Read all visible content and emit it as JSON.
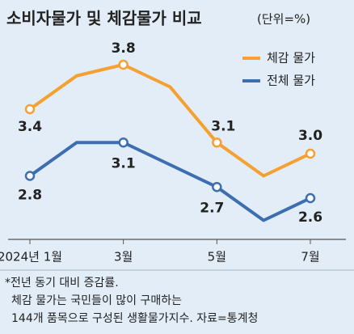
{
  "chart_data": {
    "type": "line",
    "title": "소비자물가 및 체감물가 비교",
    "unit": "(단위=%)",
    "categories": [
      "2024년 1월",
      null,
      "3월",
      null,
      "5월",
      null,
      "7월"
    ],
    "series": [
      {
        "name": "체감 물가",
        "color": "#f5a030",
        "values": [
          3.4,
          3.7,
          3.8,
          3.6,
          3.1,
          2.8,
          3.0
        ],
        "value_labels": [
          "3.4",
          null,
          "3.8",
          null,
          "3.1",
          null,
          "3.0"
        ]
      },
      {
        "name": "전체 물가",
        "color": "#3d6fb0",
        "values": [
          2.8,
          3.1,
          3.1,
          2.9,
          2.7,
          2.4,
          2.6
        ],
        "value_labels": [
          "2.8",
          null,
          "3.1",
          null,
          "2.7",
          null,
          "2.6"
        ]
      }
    ],
    "ylim": [
      2.2,
      4.0
    ],
    "legend": "top-right",
    "footnotes": [
      "*전년 동기 대비 증감률.",
      "체감 물가는 국민들이 많이 구매하는",
      "144개 품목으로 구성된 생활물가지수. 자료=통계청"
    ]
  }
}
